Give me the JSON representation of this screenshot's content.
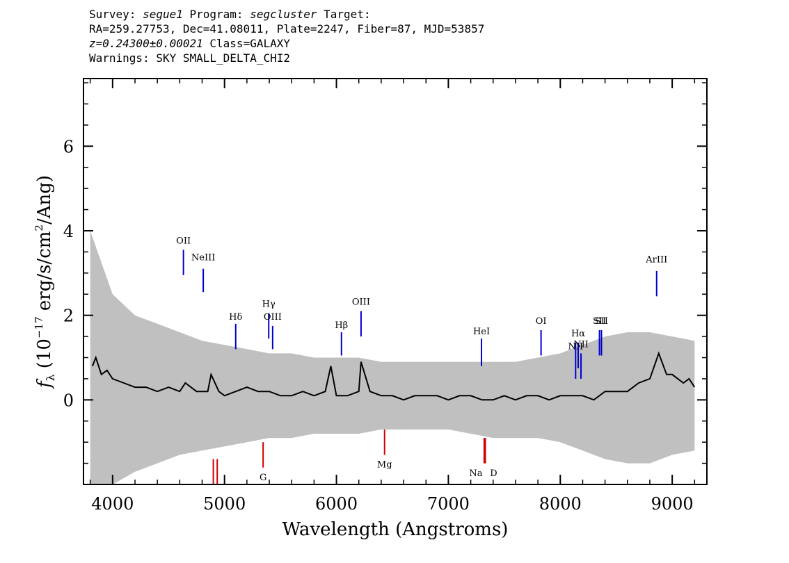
{
  "header": {
    "survey_prefix": "Survey: ",
    "survey": "segue1",
    "program_prefix": " Program: ",
    "program": "segcluster",
    "target_suffix": " Target:",
    "line2": "RA=259.27753, Dec=41.08011, Plate=2247, Fiber=87, MJD=53857",
    "redshift": "z=0.24300±0.00021",
    "class_text": " Class=GALAXY",
    "warnings": "Warnings: SKY SMALL_DELTA_CHI2"
  },
  "chart_data": {
    "type": "line",
    "title": "",
    "xlabel": "Wavelength (Angstroms)",
    "ylabel_sym": "f",
    "ylabel_sub": "λ",
    "ylabel_a": "(10",
    "ylabel_exp": "−17",
    "ylabel_b": " erg/s/cm",
    "ylabel_exp2": "2",
    "ylabel_c": "/Ang)",
    "xlim": [
      3740,
      9310
    ],
    "ylim": [
      -2.0,
      7.6
    ],
    "xticks": [
      4000,
      5000,
      6000,
      7000,
      8000,
      9000
    ],
    "yticks": [
      0,
      2,
      4,
      6
    ],
    "xtick_labels": [
      "4000",
      "5000",
      "6000",
      "7000",
      "8000",
      "9000"
    ],
    "ytick_labels": [
      "0",
      "2",
      "4",
      "6"
    ],
    "series": [
      {
        "color": "#000000",
        "x": [
          3820,
          3850,
          3900,
          3950,
          4000,
          4100,
          4200,
          4300,
          4400,
          4500,
          4600,
          4650,
          4700,
          4750,
          4800,
          4850,
          4880,
          4950,
          5000,
          5100,
          5200,
          5300,
          5400,
          5500,
          5600,
          5700,
          5800,
          5900,
          5950,
          6000,
          6100,
          6200,
          6220,
          6300,
          6400,
          6500,
          6600,
          6700,
          6800,
          6900,
          7000,
          7100,
          7200,
          7300,
          7400,
          7500,
          7600,
          7700,
          7800,
          7900,
          8000,
          8100,
          8200,
          8300,
          8400,
          8500,
          8600,
          8700,
          8800,
          8880,
          8950,
          9000,
          9050,
          9100,
          9150,
          9200
        ],
        "y": [
          0.8,
          1.0,
          0.6,
          0.7,
          0.5,
          0.4,
          0.3,
          0.3,
          0.2,
          0.3,
          0.2,
          0.4,
          0.3,
          0.2,
          0.2,
          0.2,
          0.6,
          0.2,
          0.1,
          0.2,
          0.3,
          0.2,
          0.2,
          0.1,
          0.1,
          0.2,
          0.1,
          0.2,
          0.8,
          0.1,
          0.1,
          0.2,
          0.9,
          0.2,
          0.1,
          0.1,
          0.0,
          0.1,
          0.1,
          0.1,
          0.0,
          0.1,
          0.1,
          0.0,
          0.0,
          0.1,
          0.0,
          0.1,
          0.1,
          0.0,
          0.1,
          0.1,
          0.1,
          0.0,
          0.2,
          0.2,
          0.2,
          0.4,
          0.5,
          1.1,
          0.6,
          0.6,
          0.5,
          0.4,
          0.5,
          0.3
        ]
      }
    ],
    "error_band": {
      "color": "#c0c0c0",
      "x": [
        3800,
        4000,
        4200,
        4400,
        4600,
        4800,
        5000,
        5200,
        5400,
        5600,
        5800,
        6000,
        6200,
        6400,
        6600,
        6800,
        7000,
        7200,
        7400,
        7600,
        7800,
        8000,
        8200,
        8400,
        8600,
        8800,
        9000,
        9200
      ],
      "upper": [
        4.0,
        2.5,
        2.0,
        1.8,
        1.6,
        1.4,
        1.3,
        1.2,
        1.1,
        1.1,
        1.0,
        1.0,
        1.0,
        0.9,
        0.9,
        0.9,
        0.9,
        0.9,
        0.9,
        0.9,
        1.0,
        1.1,
        1.3,
        1.5,
        1.6,
        1.6,
        1.5,
        1.4
      ],
      "lower": [
        -2.0,
        -2.0,
        -1.7,
        -1.5,
        -1.3,
        -1.2,
        -1.1,
        -1.0,
        -0.9,
        -0.9,
        -0.8,
        -0.8,
        -0.8,
        -0.7,
        -0.7,
        -0.7,
        -0.7,
        -0.8,
        -0.9,
        -0.9,
        -0.9,
        -1.0,
        -1.2,
        -1.4,
        -1.5,
        -1.5,
        -1.3,
        -1.2
      ]
    },
    "emission_lines": [
      {
        "label": "OII",
        "x": 4633,
        "y_label": 3.7,
        "y_top": 3.55,
        "y_bot": 2.95
      },
      {
        "label": "NeIII",
        "x": 4810,
        "y_label": 3.3,
        "y_top": 3.1,
        "y_bot": 2.55
      },
      {
        "label": "Hδ",
        "x": 5100,
        "y_label": 1.9,
        "y_top": 1.8,
        "y_bot": 1.2
      },
      {
        "label": "Hγ",
        "x": 5395,
        "y_label": 2.2,
        "y_top": 2.05,
        "y_bot": 1.45
      },
      {
        "label": "OIII",
        "x": 5430,
        "y_label": 1.9,
        "y_top": 1.75,
        "y_bot": 1.2
      },
      {
        "label": "Hβ",
        "x": 6045,
        "y_label": 1.7,
        "y_top": 1.6,
        "y_bot": 1.05
      },
      {
        "label": "OIII",
        "x": 6220,
        "y_label": 2.25,
        "y_top": 2.1,
        "y_bot": 1.5
      },
      {
        "label": "HeI",
        "x": 7296,
        "y_label": 1.55,
        "y_top": 1.45,
        "y_bot": 0.8
      },
      {
        "label": "OI",
        "x": 7828,
        "y_label": 1.8,
        "y_top": 1.65,
        "y_bot": 1.05
      },
      {
        "label": "NII",
        "x": 8137,
        "y_label": 1.2,
        "y_top": 1.35,
        "y_bot": 0.5
      },
      {
        "label": "Hα",
        "x": 8160,
        "y_label": 1.5,
        "y_top": 1.35,
        "y_bot": 0.75
      },
      {
        "label": "NII",
        "x": 8185,
        "y_label": 1.25,
        "y_top": 1.1,
        "y_bot": 0.5
      },
      {
        "label": "SII",
        "x": 8350,
        "y_label": 1.8,
        "y_top": 1.65,
        "y_bot": 1.05
      },
      {
        "label": "SII",
        "x": 8368,
        "y_label": 1.8,
        "y_top": 1.65,
        "y_bot": 1.05
      },
      {
        "label": "ArIII",
        "x": 8861,
        "y_label": 3.25,
        "y_top": 3.05,
        "y_bot": 2.45
      }
    ],
    "absorption_lines": [
      {
        "label": "G",
        "x": 5345,
        "y_label": -1.9,
        "y_top": -1.0,
        "y_bot": -1.6
      },
      {
        "label": "Mg",
        "x": 6430,
        "y_label": -1.6,
        "y_top": -0.7,
        "y_bot": -1.3
      },
      {
        "label": "Na",
        "x": 7320,
        "y_label": -1.8,
        "y_top": -0.9,
        "y_bot": -1.5
      },
      {
        "label": "D",
        "x": 7330,
        "y_label": -1.8,
        "y_top": -0.9,
        "y_bot": -1.5
      },
      {
        "label": "",
        "x": 4900,
        "y_label": -1.9,
        "y_top": -1.4,
        "y_bot": -2.0
      },
      {
        "label": "",
        "x": 4935,
        "y_label": -1.9,
        "y_top": -1.4,
        "y_bot": -2.0
      }
    ],
    "colors": {
      "emission": "#0000cc",
      "absorption": "#cc0000",
      "flux": "#000000",
      "error": "#c0c0c0"
    }
  }
}
